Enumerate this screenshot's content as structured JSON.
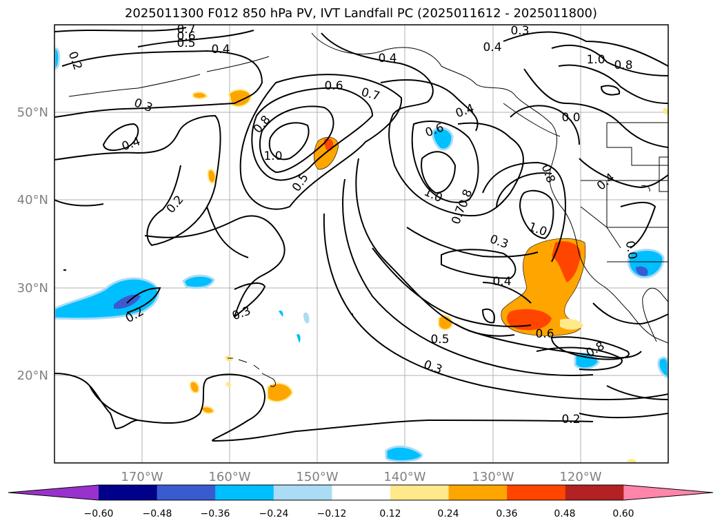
{
  "title": "2025011300 F012 850 hPa PV, IVT Landfall PC (2025011612 - 2025011800)",
  "lon_labels": [
    "170°W",
    "160°W",
    "150°W",
    "140°W",
    "130°W",
    "120°W"
  ],
  "lat_labels": [
    "50°N",
    "40°N",
    "30°N",
    "20°N"
  ],
  "contour_labels": [
    "0.7",
    "0.6",
    "0.5",
    "0.4",
    "0.3",
    "0.4",
    "0.4",
    "1.0",
    "0.8",
    "0.2",
    "0.3",
    "0.4",
    "0.6",
    "0.7",
    "0.8",
    "1.0",
    "0.5",
    "0.2",
    "0.3",
    "0.2",
    "0.6",
    "0.4",
    "1.0",
    "0.7",
    "0.8",
    "0.8",
    "0.4",
    "1.0",
    "0.3",
    "0.4",
    "0.5",
    "0.3",
    "0.6",
    "0.8",
    "0.2",
    "0.0",
    "0.0"
  ],
  "colorbar": {
    "ticks": [
      "−0.60",
      "−0.48",
      "−0.36",
      "−0.24",
      "−0.12",
      "0.12",
      "0.24",
      "0.36",
      "0.48",
      "0.60"
    ],
    "colors": [
      "#9932cc",
      "#00008b",
      "#3a5bd0",
      "#00bfff",
      "#aadcf5",
      "#ffffff",
      "#ffe98a",
      "#ffa500",
      "#ff4500",
      "#b22222",
      "#ff85aa"
    ]
  }
}
